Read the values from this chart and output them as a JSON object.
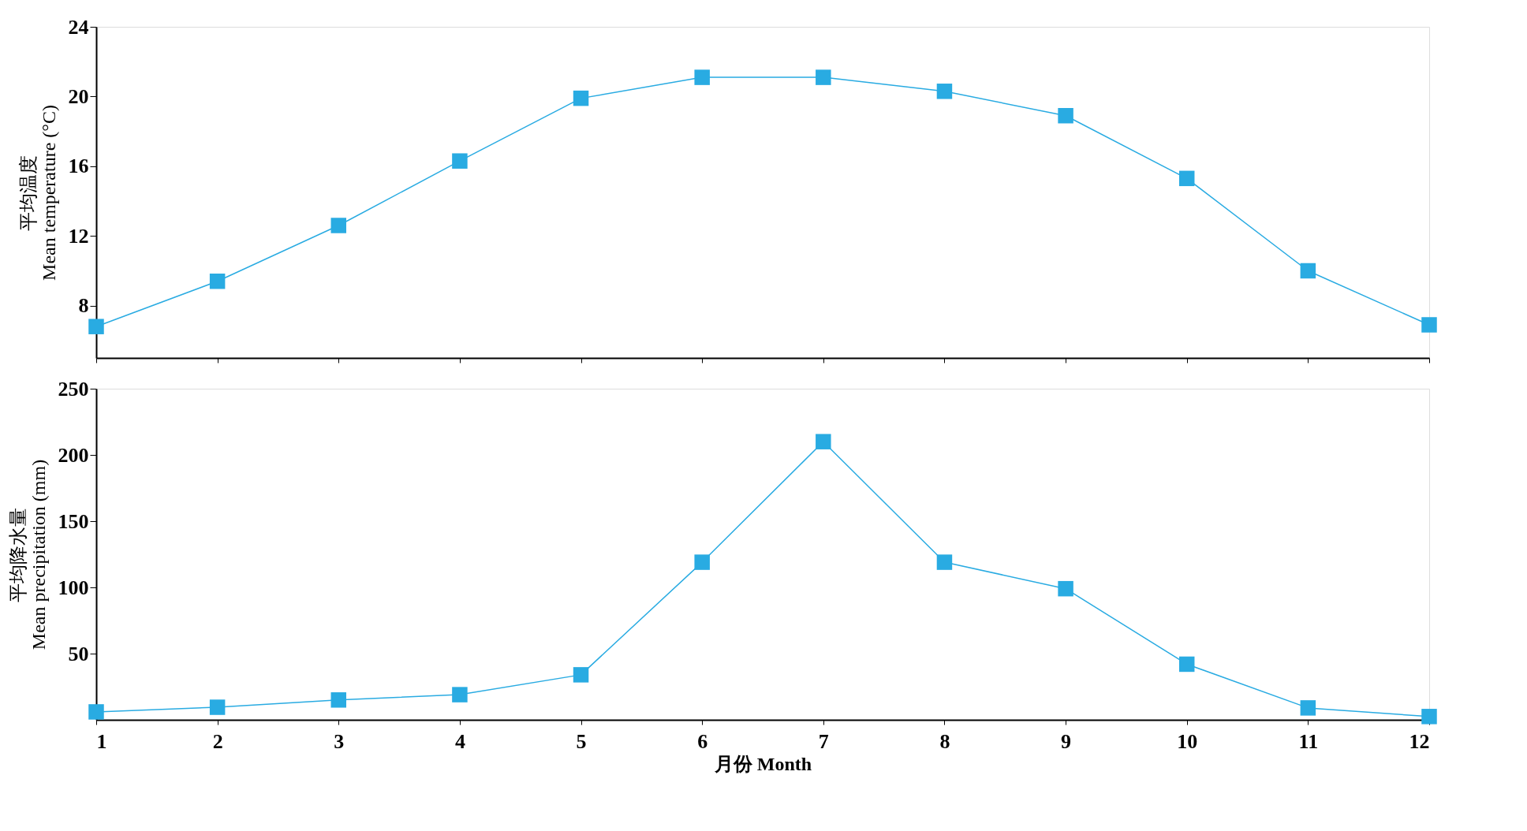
{
  "chart_data": [
    {
      "type": "line",
      "ylabel": "平均温度\nMean temperature (°C)",
      "x": [
        1,
        2,
        3,
        4,
        5,
        6,
        7,
        8,
        9,
        10,
        11,
        12
      ],
      "series": [
        {
          "color": "#29abe2",
          "values": [
            6.8,
            9.4,
            12.6,
            16.3,
            19.9,
            21.1,
            21.1,
            20.3,
            18.9,
            15.3,
            10.0,
            6.9
          ]
        }
      ],
      "xlim": [
        1,
        12
      ],
      "xticks": [
        1,
        2,
        3,
        4,
        5,
        6,
        7,
        8,
        9,
        10,
        11,
        12
      ],
      "ylim": [
        5,
        24
      ],
      "yticks": [
        8,
        12,
        16,
        20,
        24
      ],
      "marker": "square",
      "line_style": "solid",
      "grid": false,
      "tick_labels": "y"
    },
    {
      "type": "line",
      "xlabel": "月份 Month",
      "ylabel": "平均降水量\nMean precipitation (mm)",
      "x": [
        1,
        2,
        3,
        4,
        5,
        6,
        7,
        8,
        9,
        10,
        11,
        12
      ],
      "series": [
        {
          "color": "#29abe2",
          "values": [
            6,
            9.5,
            15,
            19,
            34,
            119,
            210,
            119,
            99,
            42,
            9,
            2.5
          ]
        }
      ],
      "xlim": [
        1,
        12
      ],
      "xticks": [
        1,
        2,
        3,
        4,
        5,
        6,
        7,
        8,
        9,
        10,
        11,
        12
      ],
      "ylim": [
        0,
        250
      ],
      "yticks": [
        50,
        100,
        150,
        200,
        250
      ],
      "marker": "square",
      "line_style": "solid",
      "grid": false
    }
  ]
}
